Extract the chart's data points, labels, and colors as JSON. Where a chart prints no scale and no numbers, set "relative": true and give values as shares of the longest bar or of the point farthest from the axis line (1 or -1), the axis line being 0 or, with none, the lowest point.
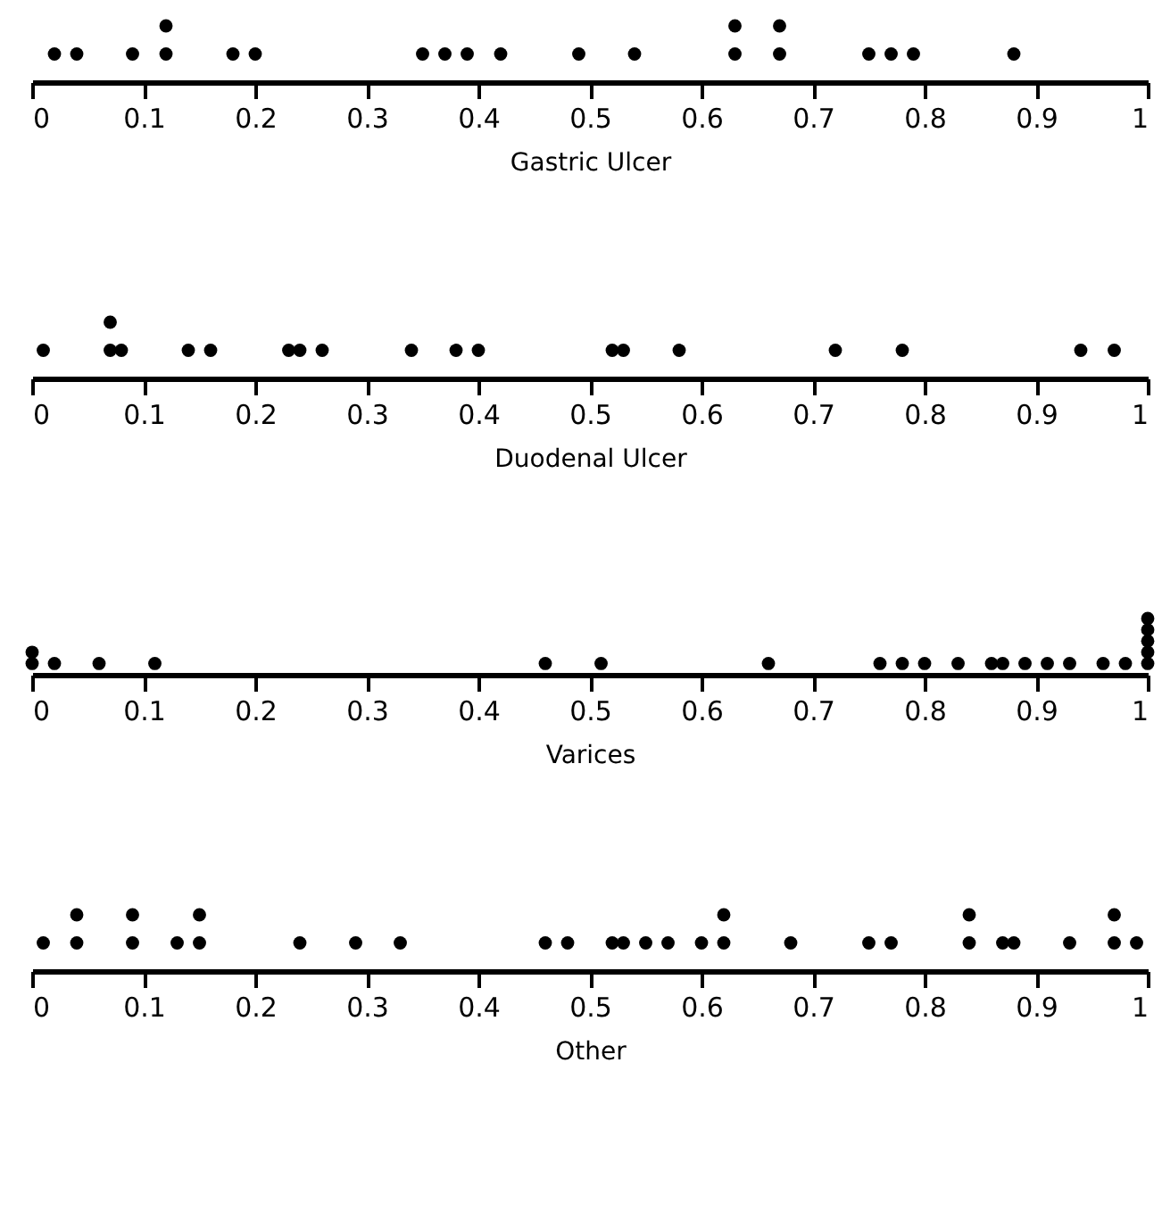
{
  "chart_data": [
    {
      "type": "scatter",
      "xlabel": "Gastric Ulcer",
      "relative": true,
      "color": "#000000",
      "marker": "circle",
      "xlim": [
        0,
        1
      ],
      "xticks": [
        0,
        0.1,
        0.2,
        0.3,
        0.4,
        0.5,
        0.6,
        0.7,
        0.8,
        0.9,
        1
      ],
      "x": [
        0.02,
        0.04,
        0.09,
        0.12,
        0.12,
        0.18,
        0.2,
        0.35,
        0.37,
        0.39,
        0.42,
        0.49,
        0.54,
        0.63,
        0.63,
        0.67,
        0.67,
        0.75,
        0.77,
        0.79,
        0.88
      ],
      "values": [
        0.5,
        0.5,
        0.5,
        0.5,
        1,
        0.5,
        0.5,
        0.5,
        0.5,
        0.5,
        0.5,
        0.5,
        0.5,
        0.5,
        1,
        0.5,
        1,
        0.5,
        0.5,
        0.5,
        0.5
      ]
    },
    {
      "type": "scatter",
      "xlabel": "Duodenal Ulcer",
      "relative": true,
      "color": "#000000",
      "marker": "circle",
      "xlim": [
        0,
        1
      ],
      "xticks": [
        0,
        0.1,
        0.2,
        0.3,
        0.4,
        0.5,
        0.6,
        0.7,
        0.8,
        0.9,
        1
      ],
      "x": [
        0.01,
        0.07,
        0.07,
        0.08,
        0.14,
        0.16,
        0.23,
        0.24,
        0.26,
        0.34,
        0.38,
        0.4,
        0.52,
        0.53,
        0.58,
        0.72,
        0.78,
        0.94,
        0.97
      ],
      "values": [
        0.5,
        0.5,
        1,
        0.5,
        0.5,
        0.5,
        0.5,
        0.5,
        0.5,
        0.5,
        0.5,
        0.5,
        0.5,
        0.5,
        0.5,
        0.5,
        0.5,
        0.5,
        0.5
      ]
    },
    {
      "type": "scatter",
      "xlabel": "Varices",
      "relative": true,
      "color": "#000000",
      "marker": "circle",
      "xlim": [
        0,
        1
      ],
      "xticks": [
        0,
        0.1,
        0.2,
        0.3,
        0.4,
        0.5,
        0.6,
        0.7,
        0.8,
        0.9,
        1
      ],
      "x": [
        0,
        0,
        0.02,
        0.06,
        0.11,
        0.46,
        0.51,
        0.66,
        0.76,
        0.78,
        0.8,
        0.83,
        0.86,
        0.87,
        0.89,
        0.91,
        0.93,
        0.96,
        0.98,
        1,
        1,
        1,
        1,
        1
      ],
      "values": [
        0.2,
        0.4,
        0.2,
        0.2,
        0.2,
        0.2,
        0.2,
        0.2,
        0.2,
        0.2,
        0.2,
        0.2,
        0.2,
        0.2,
        0.2,
        0.2,
        0.2,
        0.2,
        0.2,
        0.2,
        0.4,
        0.6,
        0.8,
        1
      ]
    },
    {
      "type": "scatter",
      "xlabel": "Other",
      "relative": true,
      "color": "#000000",
      "marker": "circle",
      "xlim": [
        0,
        1
      ],
      "xticks": [
        0,
        0.1,
        0.2,
        0.3,
        0.4,
        0.5,
        0.6,
        0.7,
        0.8,
        0.9,
        1
      ],
      "x": [
        0.01,
        0.04,
        0.04,
        0.09,
        0.09,
        0.13,
        0.15,
        0.15,
        0.24,
        0.29,
        0.33,
        0.46,
        0.48,
        0.52,
        0.53,
        0.55,
        0.57,
        0.6,
        0.62,
        0.62,
        0.68,
        0.75,
        0.77,
        0.84,
        0.84,
        0.87,
        0.88,
        0.93,
        0.97,
        0.97,
        0.99
      ],
      "values": [
        0.5,
        0.5,
        1,
        0.5,
        1,
        0.5,
        0.5,
        1,
        0.5,
        0.5,
        0.5,
        0.5,
        0.5,
        0.5,
        0.5,
        0.5,
        0.5,
        0.5,
        0.5,
        1,
        0.5,
        0.5,
        0.5,
        0.5,
        1,
        0.5,
        0.5,
        0.5,
        0.5,
        1,
        0.5
      ]
    }
  ]
}
